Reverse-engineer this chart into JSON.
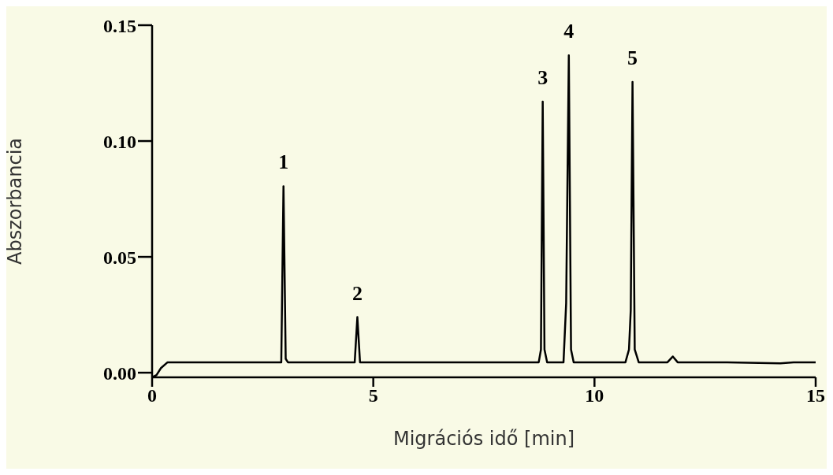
{
  "chart_data": {
    "type": "line",
    "xlabel": "Migrációs idő [min]",
    "ylabel": "Abszorbancia",
    "xlim": [
      0,
      15
    ],
    "xticks": [
      0,
      5,
      10,
      15
    ],
    "ylim": [
      -0.002,
      0.15
    ],
    "yticks": [
      {
        "value": 0,
        "label": "0.00"
      },
      0.05,
      {
        "value": 0.1,
        "label": "0.10"
      },
      0.15
    ],
    "grid": false,
    "marker": "none",
    "line_style": "solid",
    "series": [
      {
        "color": "#000000",
        "x": [
          0,
          0.1,
          0.2,
          0.35,
          1,
          2,
          2.92,
          2.97,
          3.02,
          3.07,
          3.15,
          4,
          4.58,
          4.64,
          4.7,
          6,
          8.74,
          8.79,
          8.83,
          8.87,
          8.93,
          9.3,
          9.36,
          9.42,
          9.47,
          9.53,
          10.7,
          10.78,
          10.82,
          10.86,
          10.91,
          11,
          11.65,
          11.77,
          11.88,
          13,
          14.2,
          14.5,
          15
        ],
        "values": [
          -0.002,
          -0.001,
          0.002,
          0.0045,
          0.0045,
          0.0045,
          0.0045,
          0.0805,
          0.006,
          0.0045,
          0.0045,
          0.0045,
          0.0045,
          0.024,
          0.0045,
          0.0045,
          0.0045,
          0.01,
          0.117,
          0.01,
          0.0045,
          0.0045,
          0.03,
          0.137,
          0.01,
          0.0045,
          0.0045,
          0.01,
          0.027,
          0.1255,
          0.01,
          0.0045,
          0.0045,
          0.007,
          0.0045,
          0.0045,
          0.004,
          0.0045,
          0.0045
        ]
      }
    ],
    "annotations": [
      {
        "text": "1",
        "x": 2.97,
        "y": 0.0805
      },
      {
        "text": "2",
        "x": 4.64,
        "y": 0.024
      },
      {
        "text": "3",
        "x": 8.83,
        "y": 0.117
      },
      {
        "text": "4",
        "x": 9.42,
        "y": 0.137
      },
      {
        "text": "5",
        "x": 10.86,
        "y": 0.1255
      }
    ]
  }
}
